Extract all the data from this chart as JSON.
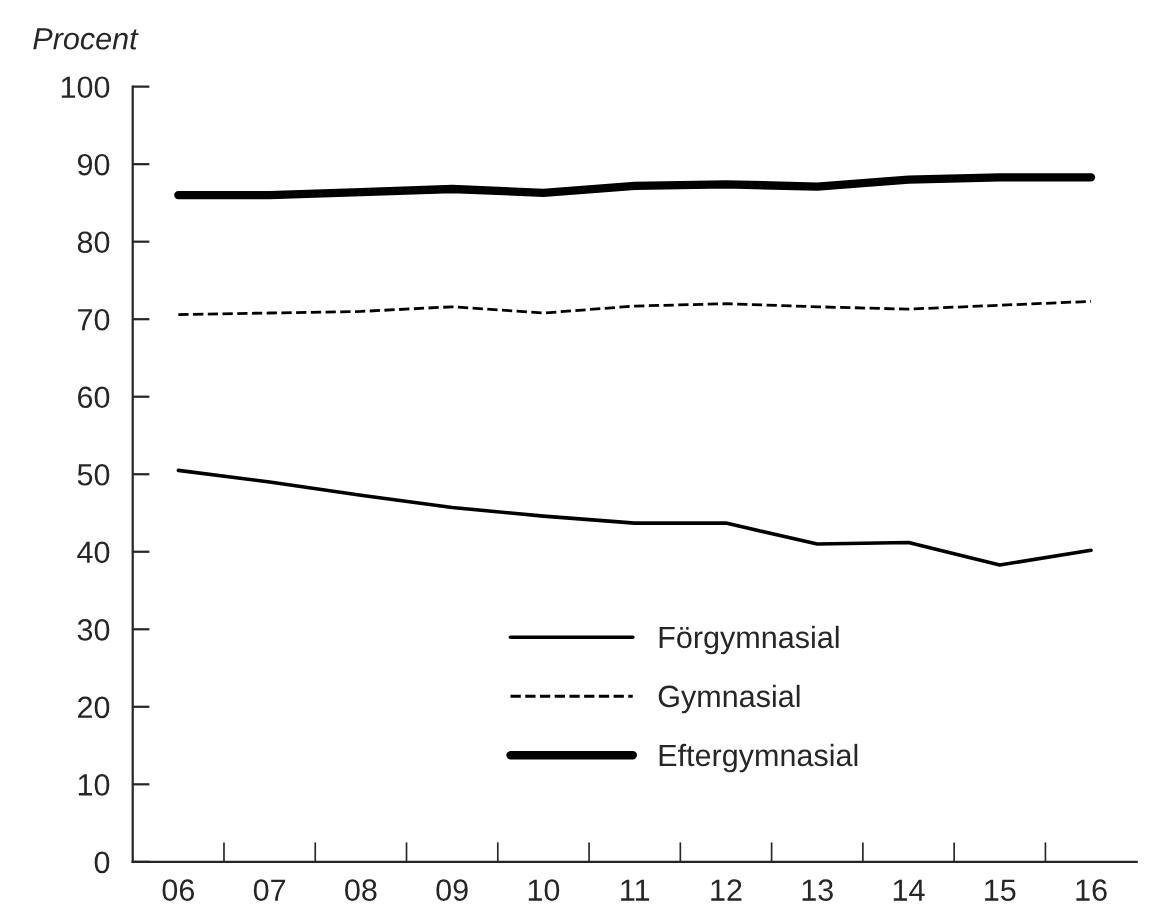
{
  "chart_data": {
    "type": "line",
    "ylabel": "Procent",
    "categories": [
      "06",
      "07",
      "08",
      "09",
      "10",
      "11",
      "12",
      "13",
      "14",
      "15",
      "16"
    ],
    "series": [
      {
        "name": "Förgymnasial",
        "color": "#000000",
        "line_style": "solid",
        "values": [
          50.5,
          49,
          47.3,
          45.7,
          44.6,
          43.7,
          43.7,
          41,
          41.2,
          38.3,
          40.2
        ]
      },
      {
        "name": "Gymnasial",
        "color": "#000000",
        "line_style": "dashed",
        "values": [
          70.6,
          70.8,
          71,
          71.6,
          70.8,
          71.7,
          72,
          71.6,
          71.3,
          71.8,
          72.3
        ]
      },
      {
        "name": "Eftergymnasial",
        "color": "#000000",
        "line_style": "solid",
        "values": [
          86,
          86,
          86.4,
          86.8,
          86.3,
          87.2,
          87.4,
          87.1,
          88,
          88.3,
          88.3
        ]
      }
    ],
    "ylim": [
      0,
      100
    ],
    "yticks": [
      0,
      10,
      20,
      30,
      40,
      50,
      60,
      70,
      80,
      90,
      100
    ],
    "grid": false,
    "legend": "bottom",
    "marker": "none"
  }
}
